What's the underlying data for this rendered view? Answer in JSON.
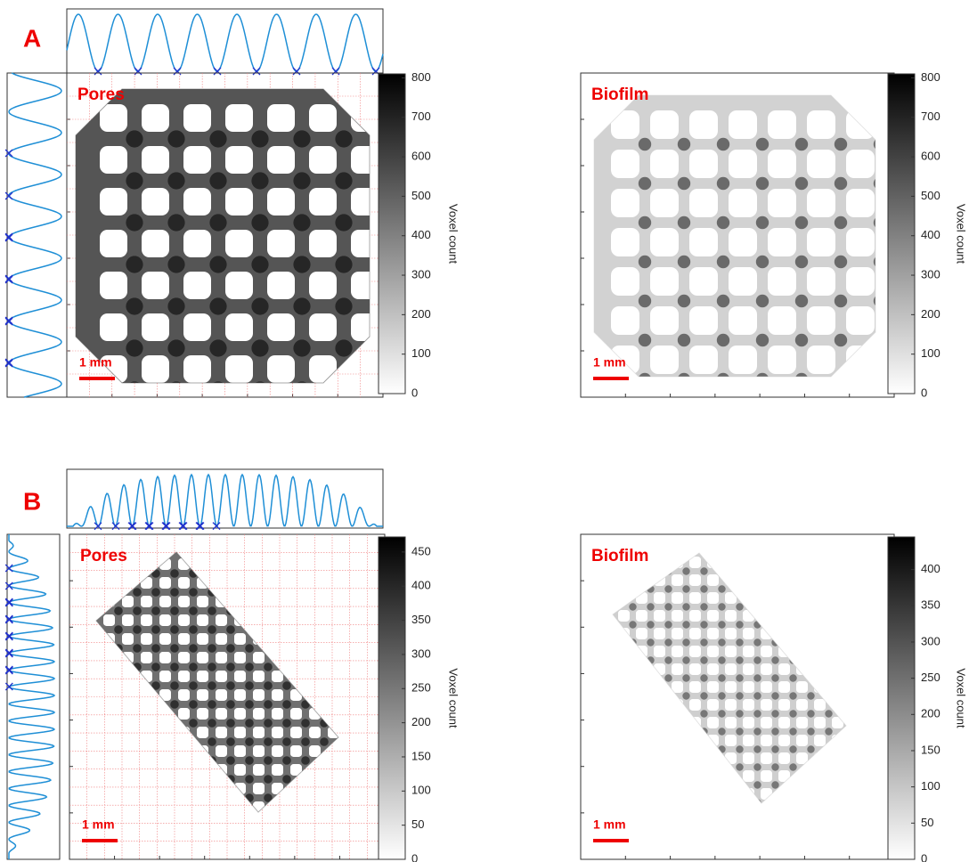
{
  "panels": [
    {
      "label": "A",
      "images": [
        {
          "title": "Pores",
          "scale_bar": "1 mm",
          "colorbar": {
            "label": "Voxel count",
            "lim": [
              0,
              810
            ],
            "ticks": [
              0,
              100,
              200,
              300,
              400,
              500,
              600,
              700,
              800
            ]
          }
        },
        {
          "title": "Biofilm",
          "scale_bar": "1 mm",
          "colorbar": {
            "label": "Voxel count",
            "lim": [
              0,
              810
            ],
            "ticks": [
              0,
              100,
              200,
              300,
              400,
              500,
              600,
              700,
              800
            ]
          }
        }
      ]
    },
    {
      "label": "B",
      "images": [
        {
          "title": "Pores",
          "scale_bar": "1 mm",
          "colorbar": {
            "label": "Voxel count",
            "lim": [
              0,
              472
            ],
            "ticks": [
              0,
              50,
              100,
              150,
              200,
              250,
              300,
              350,
              400,
              450
            ]
          }
        },
        {
          "title": "Biofilm",
          "scale_bar": "1 mm",
          "colorbar": {
            "label": "Voxel count",
            "lim": [
              0,
              445
            ],
            "ticks": [
              0,
              50,
              100,
              150,
              200,
              250,
              300,
              350,
              400
            ]
          }
        }
      ]
    }
  ]
}
